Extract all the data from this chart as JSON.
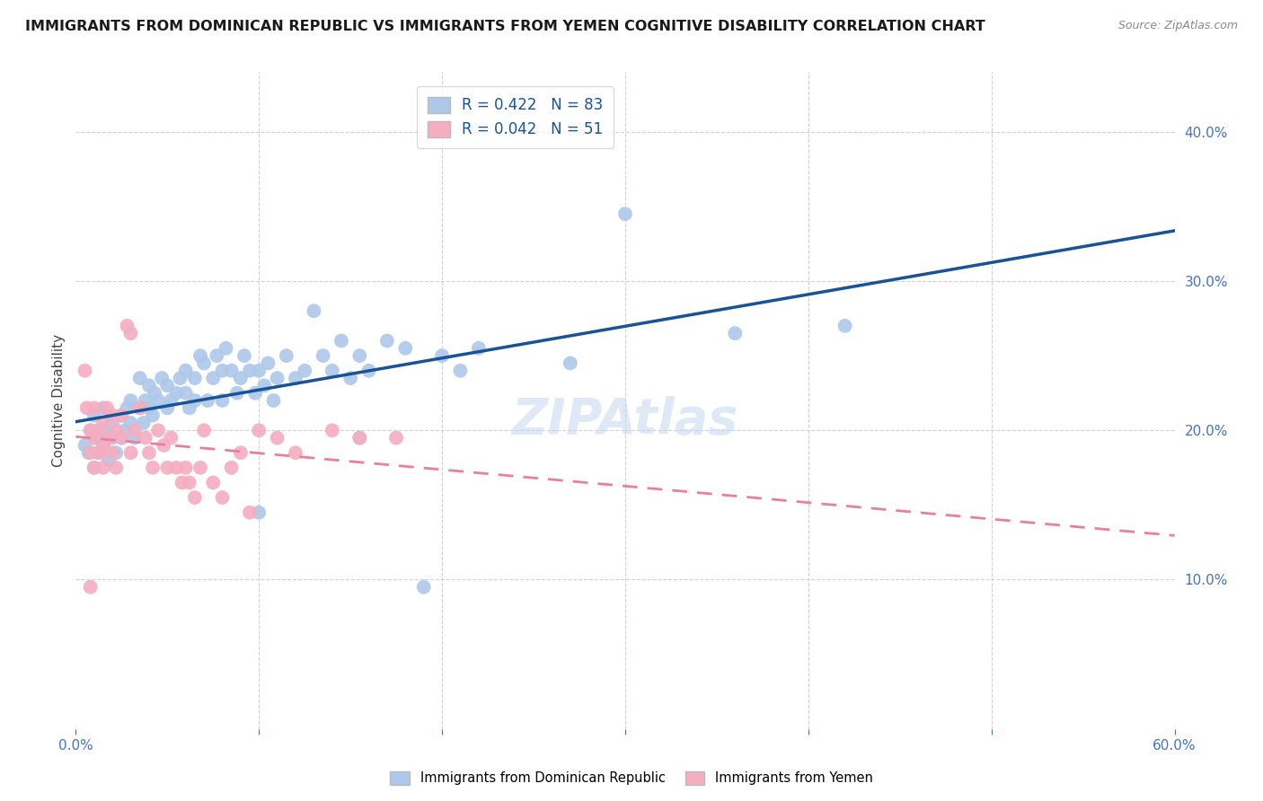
{
  "title": "IMMIGRANTS FROM DOMINICAN REPUBLIC VS IMMIGRANTS FROM YEMEN COGNITIVE DISABILITY CORRELATION CHART",
  "source": "Source: ZipAtlas.com",
  "ylabel": "Cognitive Disability",
  "xlim": [
    0.0,
    0.6
  ],
  "ylim": [
    0.0,
    0.44
  ],
  "blue_R": 0.422,
  "blue_N": 83,
  "pink_R": 0.042,
  "pink_N": 51,
  "blue_color": "#adc8e8",
  "pink_color": "#f5adc0",
  "blue_line_color": "#1a5296",
  "pink_line_color": "#e8809a",
  "legend_label_blue": "Immigrants from Dominican Republic",
  "legend_label_pink": "Immigrants from Yemen",
  "watermark": "ZIPAtlas",
  "blue_points_x": [
    0.005,
    0.007,
    0.008,
    0.01,
    0.01,
    0.01,
    0.012,
    0.013,
    0.015,
    0.015,
    0.015,
    0.018,
    0.02,
    0.02,
    0.022,
    0.025,
    0.025,
    0.027,
    0.028,
    0.03,
    0.03,
    0.032,
    0.035,
    0.035,
    0.037,
    0.038,
    0.04,
    0.04,
    0.042,
    0.043,
    0.045,
    0.047,
    0.05,
    0.05,
    0.052,
    0.055,
    0.057,
    0.06,
    0.06,
    0.062,
    0.065,
    0.065,
    0.068,
    0.07,
    0.072,
    0.075,
    0.077,
    0.08,
    0.08,
    0.082,
    0.085,
    0.088,
    0.09,
    0.092,
    0.095,
    0.098,
    0.1,
    0.103,
    0.105,
    0.108,
    0.11,
    0.115,
    0.12,
    0.125,
    0.13,
    0.135,
    0.14,
    0.145,
    0.15,
    0.155,
    0.16,
    0.17,
    0.18,
    0.2,
    0.21,
    0.22,
    0.27,
    0.3,
    0.36,
    0.42,
    0.1,
    0.155,
    0.19
  ],
  "blue_points_y": [
    0.19,
    0.185,
    0.2,
    0.195,
    0.175,
    0.21,
    0.185,
    0.195,
    0.19,
    0.2,
    0.215,
    0.18,
    0.195,
    0.205,
    0.185,
    0.21,
    0.195,
    0.2,
    0.215,
    0.205,
    0.22,
    0.195,
    0.215,
    0.235,
    0.205,
    0.22,
    0.215,
    0.23,
    0.21,
    0.225,
    0.22,
    0.235,
    0.215,
    0.23,
    0.22,
    0.225,
    0.235,
    0.225,
    0.24,
    0.215,
    0.235,
    0.22,
    0.25,
    0.245,
    0.22,
    0.235,
    0.25,
    0.24,
    0.22,
    0.255,
    0.24,
    0.225,
    0.235,
    0.25,
    0.24,
    0.225,
    0.24,
    0.23,
    0.245,
    0.22,
    0.235,
    0.25,
    0.235,
    0.24,
    0.28,
    0.25,
    0.24,
    0.26,
    0.235,
    0.25,
    0.24,
    0.26,
    0.255,
    0.25,
    0.24,
    0.255,
    0.245,
    0.345,
    0.265,
    0.27,
    0.145,
    0.195,
    0.095
  ],
  "pink_points_x": [
    0.005,
    0.006,
    0.008,
    0.008,
    0.01,
    0.01,
    0.01,
    0.012,
    0.013,
    0.015,
    0.015,
    0.015,
    0.017,
    0.018,
    0.02,
    0.02,
    0.022,
    0.022,
    0.025,
    0.025,
    0.028,
    0.03,
    0.03,
    0.032,
    0.035,
    0.038,
    0.04,
    0.042,
    0.045,
    0.048,
    0.05,
    0.052,
    0.055,
    0.058,
    0.06,
    0.062,
    0.065,
    0.068,
    0.07,
    0.075,
    0.08,
    0.085,
    0.09,
    0.095,
    0.1,
    0.11,
    0.12,
    0.14,
    0.155,
    0.175,
    0.008
  ],
  "pink_points_y": [
    0.24,
    0.215,
    0.2,
    0.185,
    0.195,
    0.215,
    0.175,
    0.2,
    0.185,
    0.19,
    0.205,
    0.175,
    0.215,
    0.195,
    0.21,
    0.185,
    0.2,
    0.175,
    0.21,
    0.195,
    0.27,
    0.265,
    0.185,
    0.2,
    0.215,
    0.195,
    0.185,
    0.175,
    0.2,
    0.19,
    0.175,
    0.195,
    0.175,
    0.165,
    0.175,
    0.165,
    0.155,
    0.175,
    0.2,
    0.165,
    0.155,
    0.175,
    0.185,
    0.145,
    0.2,
    0.195,
    0.185,
    0.2,
    0.195,
    0.195,
    0.095
  ],
  "grid_color": "#d0d0d0",
  "background_color": "#ffffff",
  "tick_color": "#4472c4",
  "title_fontsize": 11.5,
  "axis_fontsize": 11,
  "legend_fontsize": 12
}
